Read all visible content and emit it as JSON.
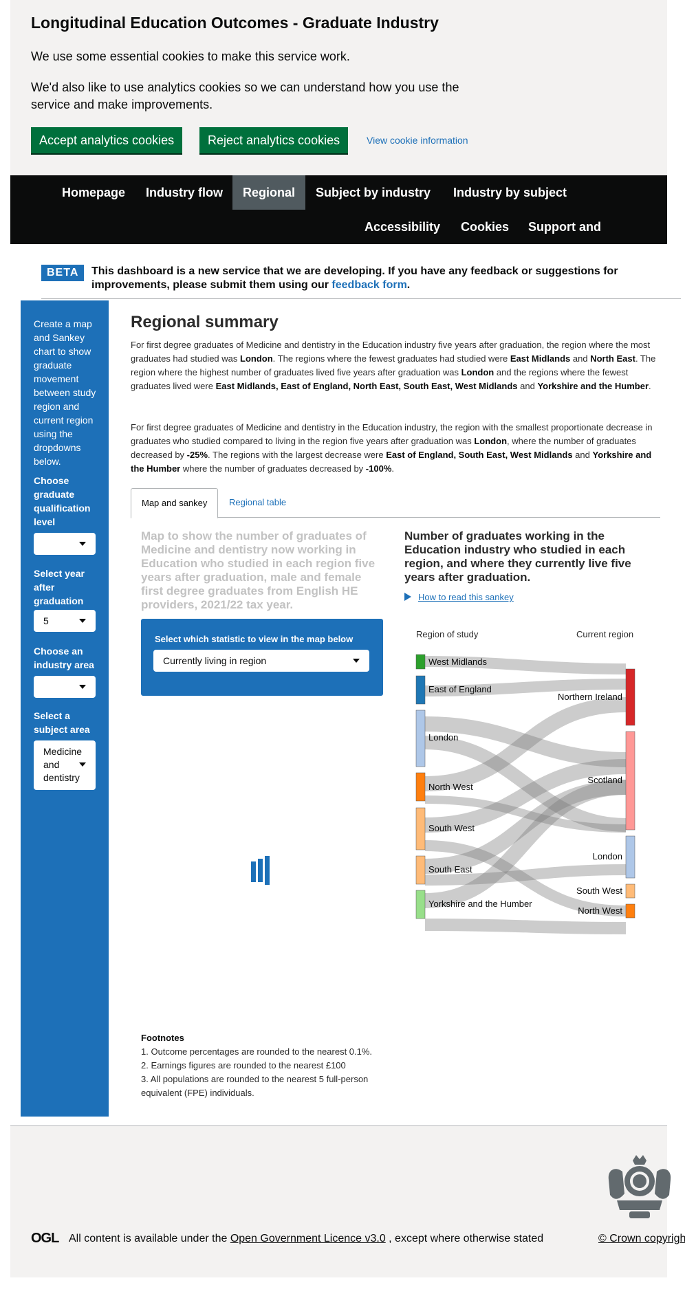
{
  "cookie_banner": {
    "title": "Longitudinal Education Outcomes - Graduate Industry",
    "line1": "We use some essential cookies to make this service work.",
    "line2": "We'd also like to use analytics cookies so we can understand how you use the service and make improvements.",
    "accept_label": "Accept analytics cookies",
    "reject_label": "Reject analytics cookies",
    "info_link": "View cookie information"
  },
  "nav": {
    "homepage": "Homepage",
    "industry_flow": "Industry flow",
    "regional": "Regional",
    "subject_by_industry": "Subject by industry",
    "industry_by_subject": "Industry by subject",
    "accessibility": "Accessibility",
    "cookies": "Cookies",
    "support": "Support and feedback"
  },
  "beta": {
    "tag": "BETA",
    "text": "This dashboard is a new service that we are developing. If you have any feedback or suggestions for improvements, please submit them using our",
    "link": "feedback form",
    "end": "."
  },
  "sidebar": {
    "intro": "Create a map and Sankey chart to show graduate movement between study region and current region using the dropdowns below.",
    "qual_label": "Choose graduate qualification level",
    "qual_value": "",
    "year_label": "Select year after graduation",
    "year_value": "5",
    "industry_label": "Choose an industry area",
    "industry_value": "",
    "subject_label": "Select a subject area",
    "subject_value": "Medicine and dentistry"
  },
  "main": {
    "title": "Regional summary",
    "p1": {
      "a": "For first degree graduates of Medicine and dentistry in the Education industry five years after graduation, the region where the most graduates had studied was ",
      "b": "London",
      "c": ". The regions where the fewest graduates had studied were ",
      "d": "East Midlands",
      "e": " and ",
      "f": "North East",
      "g": ". The region where the highest number of graduates lived five years after graduation was ",
      "h": "London",
      "i": " and the regions where the fewest graduates lived were ",
      "j": "East Midlands, East of England, North East, South East, West Midlands",
      "k": " and ",
      "l": "Yorkshire and the Humber",
      "m": "."
    },
    "p2": {
      "a": "For first degree graduates of Medicine and dentistry in the Education industry, the region with the smallest proportionate decrease in graduates who studied compared to living in the region five years after graduation was ",
      "b": "London",
      "c": ", where the number of graduates decreased by ",
      "d": "-25%",
      "e": ". The regions with the largest decrease were ",
      "f": "East of England, South East, West Midlands",
      "g": " and ",
      "h": "Yorkshire and the Humber",
      "i": " where the number of graduates decreased by ",
      "j": "-100%",
      "k": "."
    },
    "tab_map": "Map and sankey",
    "tab_table": "Regional table",
    "map_title": "Map to show the number of graduates of Medicine and dentistry now working in Education who studied in each region five years after graduation, male and female first degree graduates from English HE providers, 2021/22 tax year.",
    "stat_label": "Select which statistic to view in the map below",
    "stat_value": "Currently living in region",
    "sankey_title": "Number of graduates working in the Education industry who studied in each region, and where they currently live five years after graduation.",
    "how_to_read": "How to read this sankey",
    "footnotes_title": "Footnotes",
    "footnote1": "1. Outcome percentages are rounded to the nearest 0.1%.",
    "footnote2": "2. Earnings figures are rounded to the nearest £100",
    "footnote3": "3. All populations are rounded to the nearest 5 full-person equivalent (FPE) individuals."
  },
  "sankey": {
    "left_header": "Region of study",
    "right_header": "Current region",
    "sources": [
      {
        "name": "West Midlands",
        "color": "#2ca02c"
      },
      {
        "name": "East of England",
        "color": "#1f77b4"
      },
      {
        "name": "London",
        "color": "#aec7e8"
      },
      {
        "name": "North West",
        "color": "#ff7f0e"
      },
      {
        "name": "South West",
        "color": "#ffbb78"
      },
      {
        "name": "South East",
        "color": "#ffbb78"
      },
      {
        "name": "Yorkshire and the Humber",
        "color": "#98df8a"
      }
    ],
    "targets": [
      {
        "name": "Northern Ireland",
        "color": "#d62728"
      },
      {
        "name": "Scotland",
        "color": "#ff9896"
      },
      {
        "name": "London",
        "color": "#aec7e8"
      },
      {
        "name": "South West",
        "color": "#ffbb78"
      },
      {
        "name": "North West",
        "color": "#ff7f0e"
      }
    ]
  },
  "footer": {
    "ogl": "OGL",
    "licence_pre": "All content is available under the ",
    "licence_link": "Open Government Licence v3.0",
    "licence_post": " , except where otherwise stated",
    "crown": "© Crown copyright"
  }
}
